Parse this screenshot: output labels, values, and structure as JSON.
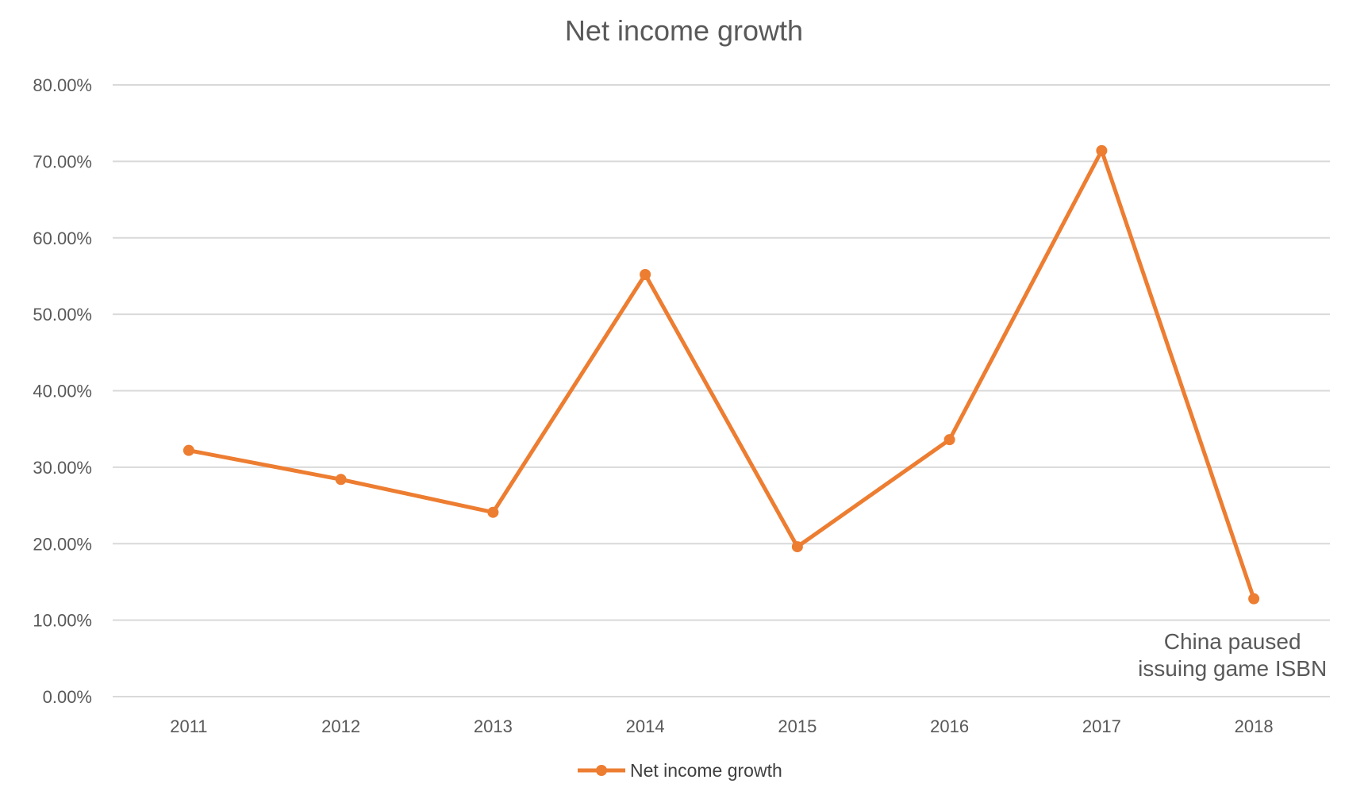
{
  "chart_data": {
    "type": "line",
    "title": "Net income growth",
    "xlabel": "",
    "ylabel": "",
    "categories": [
      "2011",
      "2012",
      "2013",
      "2014",
      "2015",
      "2016",
      "2017",
      "2018"
    ],
    "series": [
      {
        "name": "Net income growth",
        "color": "#ED7D31",
        "values": [
          0.322,
          0.284,
          0.241,
          0.552,
          0.196,
          0.336,
          0.714,
          0.128
        ]
      }
    ],
    "ylim": [
      0,
      0.8
    ],
    "yticks": [
      0,
      0.1,
      0.2,
      0.3,
      0.4,
      0.5,
      0.6,
      0.7,
      0.8
    ],
    "ytick_labels": [
      "0.00%",
      "10.00%",
      "20.00%",
      "30.00%",
      "40.00%",
      "50.00%",
      "60.00%",
      "70.00%",
      "80.00%"
    ],
    "grid": true,
    "legend_position": "bottom",
    "annotation": {
      "lines": [
        "China paused",
        "issuing game ISBN"
      ],
      "category": "2018"
    }
  }
}
